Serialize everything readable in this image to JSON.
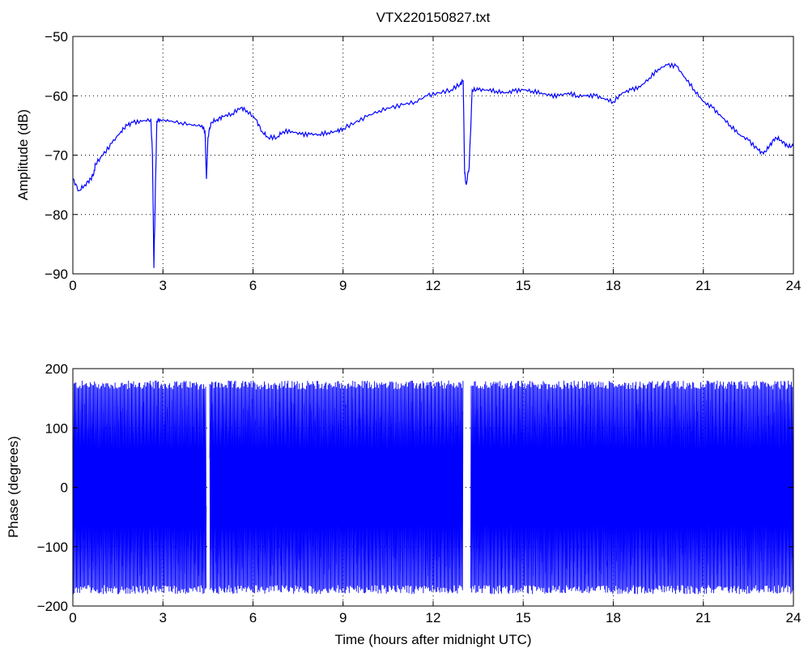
{
  "chart_data": [
    {
      "type": "line",
      "title": "VTX220150827.txt",
      "xlabel": "",
      "ylabel": "Amplitude (dB)",
      "xlim": [
        0,
        24
      ],
      "ylim": [
        -90,
        -50
      ],
      "xticks": [
        0,
        3,
        6,
        9,
        12,
        15,
        18,
        21,
        24
      ],
      "yticks": [
        -90,
        -80,
        -70,
        -60,
        -50
      ],
      "xtick_labels": [
        "0",
        "3",
        "6",
        "9",
        "12",
        "15",
        "18",
        "21",
        "24"
      ],
      "ytick_labels": [
        "−90",
        "−80",
        "−70",
        "−60",
        "−50"
      ],
      "grid": true,
      "color": "#0000ff",
      "series": [
        {
          "x": [
            0.0,
            0.2,
            0.4,
            0.6,
            0.7,
            0.75,
            1.0,
            1.3,
            1.6,
            1.8,
            2.0,
            2.3,
            2.6,
            2.65,
            2.7,
            2.75,
            2.8,
            2.9,
            3.2,
            3.6,
            4.0,
            4.3,
            4.4,
            4.45,
            4.5,
            4.6,
            4.8,
            5.0,
            5.3,
            5.6,
            5.8,
            6.1,
            6.3,
            6.5,
            6.8,
            7.0,
            7.3,
            7.6,
            7.9,
            8.2,
            8.5,
            8.8,
            9.0,
            9.4,
            9.8,
            10.2,
            10.6,
            11.0,
            11.4,
            11.8,
            12.2,
            12.6,
            12.9,
            13.0,
            13.05,
            13.1,
            13.2,
            13.3,
            13.5,
            13.8,
            14.1,
            14.4,
            14.7,
            15.0,
            15.3,
            15.6,
            15.9,
            16.2,
            16.5,
            16.8,
            17.1,
            17.4,
            17.7,
            18.0,
            18.3,
            18.6,
            18.9,
            19.2,
            19.5,
            19.8,
            20.1,
            20.4,
            20.7,
            21.0,
            21.3,
            21.6,
            21.9,
            22.2,
            22.5,
            22.8,
            23.0,
            23.2,
            23.4,
            23.6,
            23.8,
            24.0
          ],
          "y": [
            -74,
            -76,
            -75,
            -74,
            -73,
            -71.5,
            -70,
            -68,
            -66,
            -65,
            -64.5,
            -64.3,
            -64,
            -70,
            -89,
            -75,
            -64.2,
            -64,
            -64.3,
            -64.5,
            -65,
            -65,
            -66,
            -74,
            -67,
            -64.5,
            -64,
            -63.5,
            -63,
            -62,
            -62.5,
            -64,
            -66,
            -67,
            -67,
            -66,
            -66,
            -66.5,
            -66.5,
            -66.5,
            -66.2,
            -66,
            -65.5,
            -64.5,
            -63.5,
            -62.5,
            -62,
            -61.5,
            -61,
            -60,
            -59.5,
            -59,
            -58,
            -57.5,
            -73,
            -75,
            -72,
            -59,
            -59,
            -59,
            -59.2,
            -59.5,
            -59.2,
            -59,
            -59.2,
            -59.5,
            -60,
            -60,
            -59.5,
            -60,
            -60,
            -60,
            -60.5,
            -61,
            -59.5,
            -59,
            -58.5,
            -57,
            -55.5,
            -54.8,
            -55,
            -57,
            -59,
            -61,
            -62,
            -63.5,
            -65,
            -66.5,
            -67.5,
            -69,
            -69.8,
            -68.5,
            -67,
            -67.5,
            -68.5,
            -68.5
          ]
        }
      ]
    },
    {
      "type": "line",
      "title": "",
      "xlabel": "Time (hours after midnight UTC)",
      "ylabel": "Phase (degrees)",
      "xlim": [
        0,
        24
      ],
      "ylim": [
        -200,
        200
      ],
      "xticks": [
        0,
        3,
        6,
        9,
        12,
        15,
        18,
        21,
        24
      ],
      "yticks": [
        -200,
        -100,
        0,
        100,
        200
      ],
      "xtick_labels": [
        "0",
        "3",
        "6",
        "9",
        "12",
        "15",
        "18",
        "21",
        "24"
      ],
      "ytick_labels": [
        "−200",
        "−100",
        "0",
        "100",
        "200"
      ],
      "grid": true,
      "color": "#0000ff",
      "series": [
        {
          "x_range": [
            0,
            24
          ],
          "y_range": [
            -180,
            180
          ],
          "note": "phase wraps continuously between about -180 and 180 degrees across the full day",
          "gaps": [
            [
              4.45,
              4.55
            ],
            [
              13.0,
              13.25
            ]
          ]
        }
      ]
    }
  ]
}
